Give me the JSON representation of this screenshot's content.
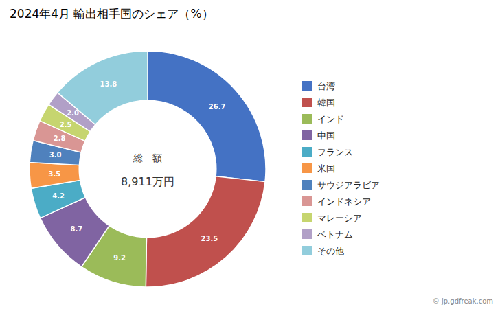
{
  "chart_data": {
    "type": "donut",
    "title": "2024年4月 輸出相手国のシェア（%）",
    "categories": [
      "台湾",
      "韓国",
      "インド",
      "中国",
      "フランス",
      "米国",
      "サウジアラビア",
      "インドネシア",
      "マレーシア",
      "ベトナム",
      "その他"
    ],
    "values": [
      26.7,
      23.5,
      9.2,
      8.7,
      4.2,
      3.5,
      3.0,
      2.8,
      2.5,
      2.0,
      13.8
    ],
    "value_labels": [
      "26.7",
      "23.5",
      "9.2",
      "8.7",
      "4.2",
      "3.5",
      "3.0",
      "2.8",
      "2.5",
      "2.0",
      "13.8"
    ],
    "colors": [
      "#4472C4",
      "#C0504D",
      "#9BBB59",
      "#8064A2",
      "#4BACC6",
      "#F79646",
      "#4F81BD",
      "#D99694",
      "#C6D56F",
      "#B1A0C7",
      "#92CDDC"
    ],
    "annotations": [
      "総　額",
      "8,911万円",
      "© jp.gdfreak.com"
    ],
    "data_labels": true,
    "legend": "right"
  }
}
